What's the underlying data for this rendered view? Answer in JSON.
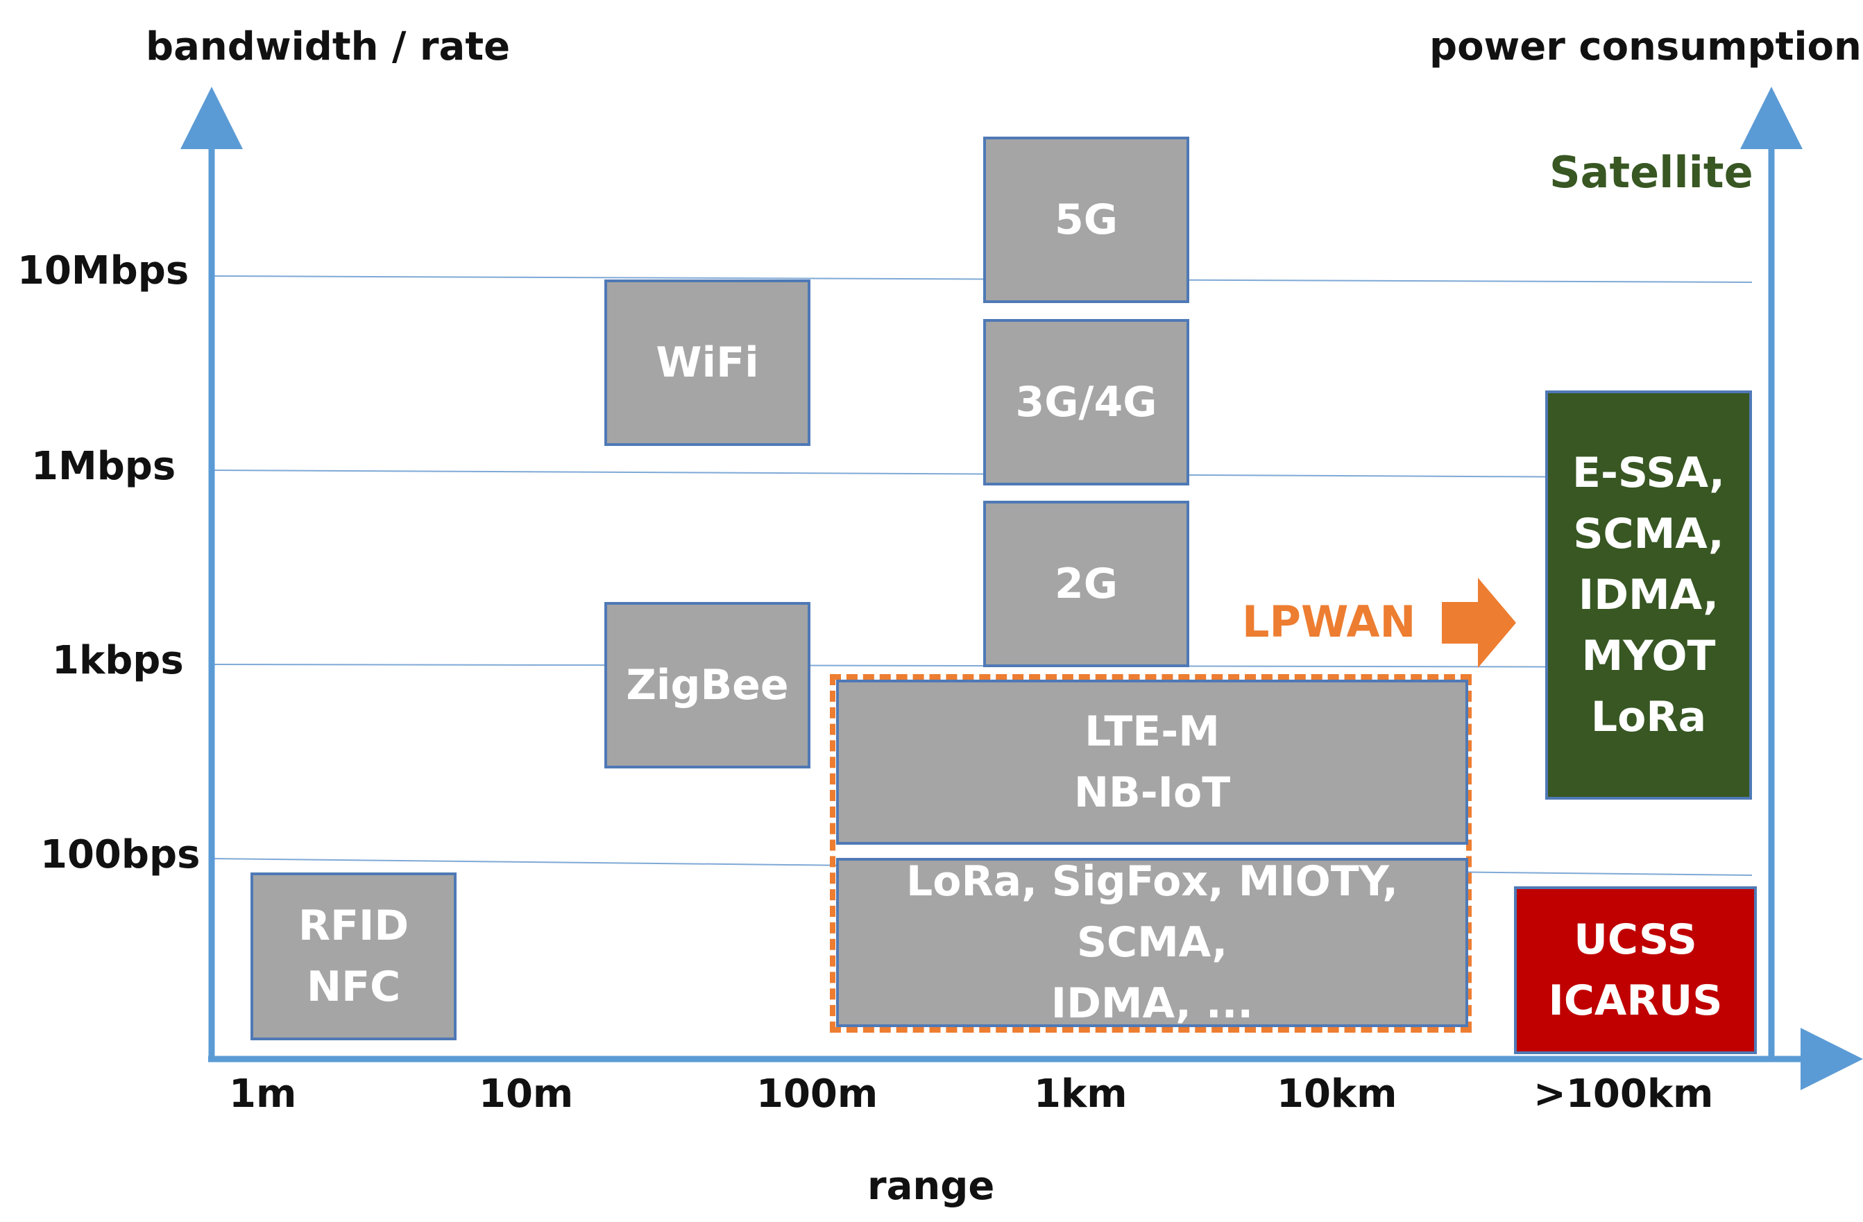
{
  "axes": {
    "y_title": "bandwidth / rate",
    "y2_title": "power consumption",
    "x_title": "range",
    "y_ticks": [
      "10Mbps",
      "1Mbps",
      "1kbps",
      "100bps"
    ],
    "x_ticks": [
      "1m",
      "10m",
      "100m",
      "1km",
      "10km",
      ">100km"
    ]
  },
  "boxes": {
    "fiveg": "5G",
    "wifi": "WiFi",
    "threeg": "3G/4G",
    "twog": "2G",
    "zigbee": "ZigBee",
    "lte": [
      "LTE-M",
      "NB-IoT"
    ],
    "lora": [
      "LoRa, SigFox, MIOTY, SCMA,",
      "IDMA, ..."
    ],
    "rfid": [
      "RFID",
      "NFC"
    ],
    "satellite_box": [
      "E-SSA,",
      "SCMA,",
      "IDMA,",
      "MYOT",
      "LoRa"
    ],
    "ucss": [
      "UCSS",
      "ICARUS"
    ]
  },
  "annotations": {
    "satellite": "Satellite",
    "lpwan": "LPWAN"
  },
  "colors": {
    "axis": "#5b9bd5",
    "box_gray": "#a5a5a5",
    "box_border": "#4f79b6",
    "lpwan": "#ed7d31",
    "satellite": "#385723",
    "ucss": "#c00000"
  }
}
